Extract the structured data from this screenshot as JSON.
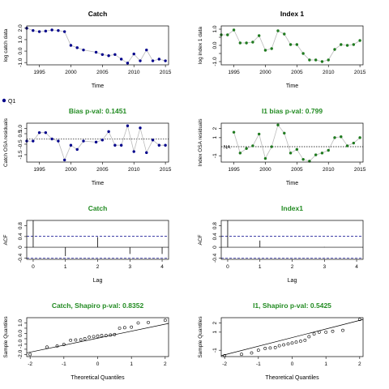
{
  "legend": {
    "label": "Q1",
    "color": "#00008b"
  },
  "colors": {
    "primary": "#00008b",
    "secondary": "#1f7a1f",
    "title_green": "#228b22",
    "line": "#bbbbbb",
    "ci": "#00008b"
  },
  "chart_data": [
    {
      "id": "catch-fit",
      "type": "line",
      "title": "Catch",
      "title_color": "#000000",
      "xlabel": "Time",
      "ylabel": "log catch data",
      "xlim": [
        1993,
        2015.5
      ],
      "ylim": [
        -1.2,
        2.2
      ],
      "xticks": [
        1995,
        2000,
        2005,
        2010,
        2015
      ],
      "yticks": [
        -1.0,
        0.0,
        1.0,
        2.0
      ],
      "ytick_labels": [
        "-1.0",
        "0.0",
        "1.0",
        "2.0"
      ],
      "series": [
        {
          "color": "#00008b",
          "x": [
            1993,
            1994,
            1995,
            1996,
            1997,
            1998,
            1999,
            2000,
            2001,
            2002,
            2004,
            2005,
            2006,
            2007,
            2008,
            2009,
            2010,
            2011,
            2012,
            2013,
            2014,
            2015
          ],
          "y": [
            2.0,
            1.8,
            1.7,
            1.75,
            1.85,
            1.8,
            1.7,
            0.5,
            0.3,
            0.1,
            -0.1,
            -0.3,
            -0.4,
            -0.3,
            -0.7,
            -1.05,
            -0.25,
            -0.85,
            0.1,
            -0.85,
            -0.7,
            -0.85
          ]
        }
      ]
    },
    {
      "id": "index-fit",
      "type": "line",
      "title": "Index 1",
      "title_color": "#000000",
      "xlabel": "Time",
      "ylabel": "log index 1 data",
      "xlim": [
        1993,
        2015.5
      ],
      "ylim": [
        -1.2,
        1.2
      ],
      "xticks": [
        1995,
        2000,
        2005,
        2010,
        2015
      ],
      "yticks": [
        -1.0,
        -0.5,
        0.0,
        0.5,
        1.0
      ],
      "ytick_labels": [
        "-1.0",
        "",
        "0.0",
        "",
        "1.0"
      ],
      "series": [
        {
          "color": "#1f7a1f",
          "x": [
            1993,
            1994,
            1995,
            1996,
            1997,
            1998,
            1999,
            2000,
            2001,
            2002,
            2003,
            2004,
            2005,
            2006,
            2007,
            2008,
            2009,
            2010,
            2011,
            2012,
            2013,
            2014,
            2015
          ],
          "y": [
            0.65,
            0.65,
            0.95,
            0.15,
            0.15,
            0.2,
            0.6,
            -0.3,
            -0.2,
            0.9,
            0.7,
            0.05,
            0.05,
            -0.5,
            -0.9,
            -0.9,
            -1.0,
            -0.9,
            -0.25,
            0.05,
            0.0,
            0.05,
            0.3
          ]
        }
      ]
    },
    {
      "id": "catch-osa",
      "type": "line",
      "title": "Bias p-val: 0.1451",
      "title_color": "#228b22",
      "xlabel": "Time",
      "ylabel": "Catch OSA residuals",
      "xlim": [
        1993,
        2015.5
      ],
      "ylim": [
        -2.2,
        1.5
      ],
      "xticks": [
        1995,
        2000,
        2005,
        2010,
        2015
      ],
      "yticks": [
        -1.5,
        -0.5,
        0.5,
        1.0
      ],
      "ytick_labels": [
        "-1.5",
        "-0.5",
        "0.5",
        "1.0"
      ],
      "reference_line": 0,
      "na_label": "",
      "series": [
        {
          "color": "#00008b",
          "x": [
            1993,
            1994,
            1995,
            1996,
            1997,
            1998,
            1999,
            2000,
            2001,
            2002,
            2004,
            2005,
            2006,
            2007,
            2008,
            2009,
            2010,
            2011,
            2012,
            2013,
            2014,
            2015
          ],
          "y": [
            -0.2,
            -0.2,
            0.6,
            0.6,
            0.0,
            -0.2,
            -2.0,
            -0.6,
            -1.0,
            -0.2,
            -0.3,
            -0.1,
            0.7,
            -0.6,
            -0.6,
            1.25,
            -1.2,
            1.05,
            -1.3,
            -0.1,
            -0.6,
            -0.6
          ]
        }
      ]
    },
    {
      "id": "index-osa",
      "type": "line",
      "title": "I1 bias p-val: 0.799",
      "title_color": "#228b22",
      "xlabel": "Time",
      "ylabel": "Index OSA residuals",
      "xlim": [
        1993,
        2015.5
      ],
      "ylim": [
        -1.7,
        2.6
      ],
      "xticks": [
        1995,
        2000,
        2005,
        2010,
        2015
      ],
      "yticks": [
        -1,
        1,
        2
      ],
      "ytick_labels": [
        "-1",
        "1",
        "2"
      ],
      "reference_line": 0,
      "na_label": "NA",
      "series": [
        {
          "color": "#1f7a1f",
          "x": [
            1995,
            1996,
            1997,
            1998,
            1999,
            2000,
            2001,
            2002,
            2003,
            2004,
            2005,
            2006,
            2007,
            2008,
            2009,
            2010,
            2011,
            2012,
            2013,
            2014,
            2015
          ],
          "y": [
            1.6,
            -0.7,
            -0.2,
            0.1,
            1.4,
            -1.3,
            0.0,
            2.4,
            1.5,
            -0.7,
            -0.3,
            -1.4,
            -1.6,
            -0.9,
            -0.7,
            -0.4,
            1.0,
            1.1,
            0.1,
            0.4,
            1.0
          ]
        }
      ]
    },
    {
      "id": "catch-acf",
      "type": "bar",
      "title": "Catch",
      "title_color": "#228b22",
      "xlabel": "Lag",
      "ylabel": "ACF",
      "xlim": [
        -0.2,
        4.2
      ],
      "ylim": [
        -0.45,
        1.0
      ],
      "xticks": [
        0,
        1,
        2,
        3,
        4
      ],
      "yticks": [
        -0.4,
        0.0,
        0.4,
        0.8
      ],
      "ytick_labels": [
        "-0.4",
        "0",
        "0.4",
        "0.8"
      ],
      "ci": 0.41,
      "lags": [
        0,
        1,
        2,
        3,
        4
      ],
      "values": [
        1.0,
        -0.33,
        0.38,
        -0.25,
        -0.25
      ]
    },
    {
      "id": "index-acf",
      "type": "bar",
      "title": "Index1",
      "title_color": "#228b22",
      "xlabel": "Lag",
      "ylabel": "ACF",
      "xlim": [
        -0.2,
        4.2
      ],
      "ylim": [
        -0.45,
        1.0
      ],
      "xticks": [
        0,
        1,
        2,
        3,
        4
      ],
      "yticks": [
        -0.4,
        0.0,
        0.4,
        0.8
      ],
      "ytick_labels": [
        "-0.4",
        "0",
        "0.4",
        "0.8"
      ],
      "ci": 0.41,
      "lags": [
        0,
        1,
        2,
        3,
        4
      ],
      "values": [
        1.0,
        0.25,
        0.0,
        0.01,
        0.0
      ]
    },
    {
      "id": "catch-qq",
      "type": "scatter",
      "title": "Catch, Shapiro p-val: 0.8352",
      "title_color": "#228b22",
      "xlabel": "Theoretical Quantiles",
      "ylabel": "Sample Quantiles",
      "xlim": [
        -2.1,
        2.1
      ],
      "ylim": [
        -2.2,
        1.5
      ],
      "xticks": [
        -2,
        -1,
        0,
        1,
        2
      ],
      "yticks": [
        -2.0,
        -1.5,
        -1.0,
        -0.5,
        0.0,
        0.5,
        1.0
      ],
      "ytick_labels": [
        "-2.0",
        "",
        "-1.0",
        "",
        "0.0",
        "",
        "1.0"
      ],
      "qq_line": [
        [
          -2.1,
          -1.85
        ],
        [
          2.1,
          0.95
        ]
      ],
      "x": [
        -2.0,
        -1.5,
        -1.2,
        -1.0,
        -0.8,
        -0.65,
        -0.5,
        -0.38,
        -0.25,
        -0.12,
        0.0,
        0.12,
        0.25,
        0.38,
        0.5,
        0.65,
        0.8,
        1.0,
        1.2,
        1.5,
        2.0
      ],
      "y": [
        -2.0,
        -1.3,
        -1.2,
        -1.05,
        -0.65,
        -0.62,
        -0.6,
        -0.5,
        -0.35,
        -0.3,
        -0.25,
        -0.2,
        -0.2,
        -0.15,
        -0.1,
        0.5,
        0.55,
        0.6,
        1.0,
        1.05,
        1.25
      ]
    },
    {
      "id": "index-qq",
      "type": "scatter",
      "title": "I1, Shapiro p-val: 0.5425",
      "title_color": "#228b22",
      "xlabel": "Theoretical Quantiles",
      "ylabel": "Sample Quantiles",
      "xlim": [
        -2.1,
        2.1
      ],
      "ylim": [
        -1.7,
        2.6
      ],
      "xticks": [
        -2,
        -1,
        0,
        1,
        2
      ],
      "yticks": [
        -1,
        1,
        2
      ],
      "ytick_labels": [
        "-1",
        "1",
        "2"
      ],
      "qq_line": [
        [
          -2.1,
          -1.6
        ],
        [
          2.1,
          2.4
        ]
      ],
      "x": [
        -2.0,
        -1.5,
        -1.2,
        -1.0,
        -0.8,
        -0.65,
        -0.5,
        -0.38,
        -0.25,
        -0.12,
        0.0,
        0.12,
        0.25,
        0.38,
        0.5,
        0.65,
        0.8,
        1.0,
        1.2,
        1.5,
        2.0
      ],
      "y": [
        -1.6,
        -1.45,
        -1.3,
        -1.0,
        -0.8,
        -0.75,
        -0.7,
        -0.5,
        -0.4,
        -0.3,
        -0.2,
        -0.1,
        0.0,
        0.1,
        0.5,
        0.8,
        1.0,
        1.0,
        1.1,
        1.2,
        2.4
      ]
    }
  ]
}
